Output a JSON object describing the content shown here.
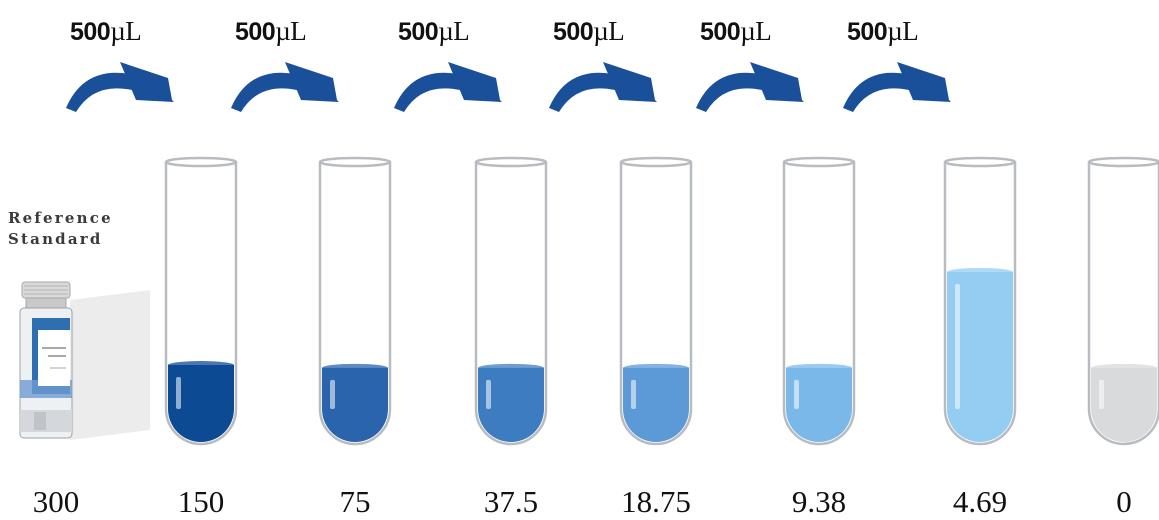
{
  "transfer": {
    "volume": "500",
    "unit": "µL"
  },
  "reference": {
    "line1": "Reference",
    "line2": "Standard",
    "vial_color": "#2d6fb0"
  },
  "colors": {
    "arrow": "#1a4f9a",
    "tube_outline": "#b8bcc0"
  },
  "tubes": [
    {
      "concentration": "150",
      "liquid_color": "#0d4a94",
      "fill_level": 0.28
    },
    {
      "concentration": "75",
      "liquid_color": "#2a64ad",
      "fill_level": 0.27
    },
    {
      "concentration": "37.5",
      "liquid_color": "#3d7cc0",
      "fill_level": 0.27
    },
    {
      "concentration": "18.75",
      "liquid_color": "#5b9ad6",
      "fill_level": 0.27
    },
    {
      "concentration": "9.38",
      "liquid_color": "#79b8e9",
      "fill_level": 0.27
    },
    {
      "concentration": "4.69",
      "liquid_color": "#93cdf1",
      "fill_level": 0.61
    },
    {
      "concentration": "0",
      "liquid_color": "#d8dadb",
      "fill_level": 0.27
    }
  ],
  "reference_concentration": "300"
}
